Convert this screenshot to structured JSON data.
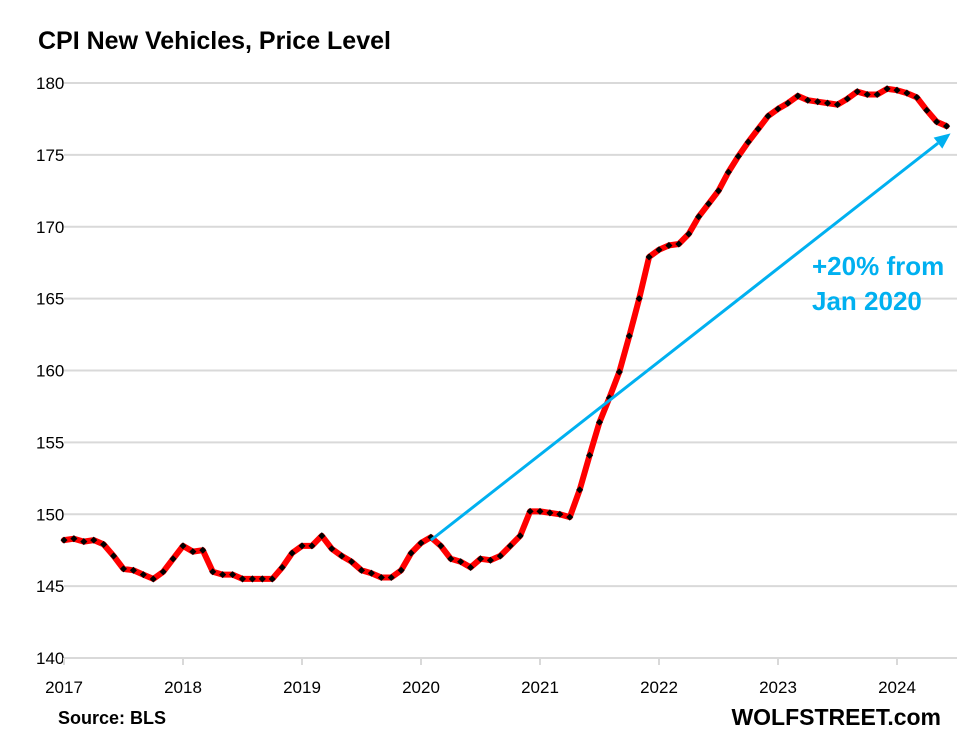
{
  "chart_data": {
    "type": "line",
    "title": "CPI New Vehicles, Price Level",
    "xlabel": "",
    "ylabel": "",
    "ylim": [
      140,
      180
    ],
    "yticks": [
      "140",
      "145",
      "150",
      "155",
      "160",
      "165",
      "170",
      "175",
      "180"
    ],
    "xticks": [
      "2017",
      "2018",
      "2019",
      "2020",
      "2021",
      "2022",
      "2023",
      "2024"
    ],
    "x_start": "2017-01",
    "x_end": "2024-06",
    "frequency": "monthly",
    "grid": "horizontal",
    "legend": "none",
    "series": [
      {
        "name": "CPI New Vehicles",
        "color": "#ff0000",
        "marker_color": "#000000",
        "values": [
          148.2,
          148.3,
          148.1,
          148.2,
          147.9,
          147.1,
          146.2,
          146.1,
          145.8,
          145.5,
          146.0,
          146.9,
          147.8,
          147.4,
          147.5,
          146.0,
          145.8,
          145.8,
          145.5,
          145.5,
          145.5,
          145.5,
          146.3,
          147.3,
          147.8,
          147.8,
          148.5,
          147.6,
          147.1,
          146.7,
          146.1,
          145.9,
          145.6,
          145.6,
          146.1,
          147.3,
          148.0,
          148.4,
          147.8,
          146.9,
          146.7,
          146.3,
          146.9,
          146.8,
          147.1,
          147.8,
          148.5,
          150.2,
          150.2,
          150.1,
          150.0,
          149.8,
          151.7,
          154.1,
          156.4,
          158.1,
          159.9,
          162.4,
          165.0,
          167.9,
          168.4,
          168.7,
          168.8,
          169.5,
          170.7,
          171.6,
          172.5,
          173.8,
          174.9,
          175.9,
          176.8,
          177.7,
          178.2,
          178.6,
          179.1,
          178.8,
          178.7,
          178.6,
          178.5,
          178.9,
          179.4,
          179.2,
          179.2,
          179.6,
          179.5,
          179.3,
          179.0,
          178.1,
          177.3,
          177.0
        ]
      }
    ],
    "annotations": [
      {
        "type": "arrow",
        "color": "#00b0f0",
        "from": {
          "x": "2020-02",
          "y": 148.2
        },
        "to": {
          "x": "2024-06",
          "y": 176.5
        }
      },
      {
        "type": "text",
        "color": "#00b0f0",
        "lines": [
          "+20% from",
          "Jan 2020"
        ]
      }
    ],
    "source": "Source: BLS",
    "brand": "WOLFSTREET.com"
  }
}
